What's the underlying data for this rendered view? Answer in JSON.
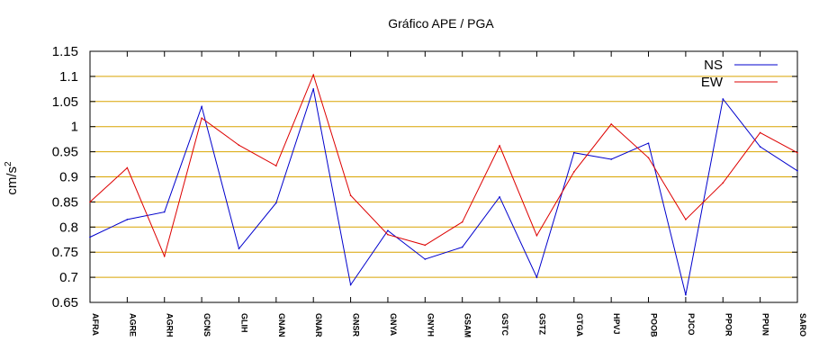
{
  "chart_data": {
    "type": "line",
    "title": "Gráfico  APE / PGA",
    "ylabel": "cm/s",
    "ylabel_sup": "2",
    "xlabel": "",
    "ylim": [
      0.65,
      1.15
    ],
    "yticks": [
      0.65,
      0.7,
      0.75,
      0.8,
      0.85,
      0.9,
      0.95,
      1,
      1.05,
      1.1,
      1.15
    ],
    "ytick_labels": [
      "0.65",
      "0.7",
      "0.75",
      "0.8",
      "0.85",
      "0.9",
      "0.95",
      "1",
      "1.05",
      "1.1",
      "1.15"
    ],
    "grid": true,
    "grid_color": "#d9a400",
    "legend_position": "top-right",
    "categories": [
      "AFRA",
      "AGRE",
      "AGRH",
      "GCNS",
      "GLIH",
      "GNAN",
      "GNAR",
      "GNSR",
      "GNYA",
      "GNYH",
      "GSAM",
      "GSTC",
      "GSTZ",
      "GTGA",
      "HPVJ",
      "POOB",
      "PJCO",
      "PPOR",
      "PPUN",
      "SARO"
    ],
    "series": [
      {
        "name": "NS",
        "color": "#0000cc",
        "values": [
          0.78,
          0.815,
          0.83,
          1.04,
          0.757,
          0.848,
          1.075,
          0.685,
          0.793,
          0.736,
          0.76,
          0.86,
          0.7,
          0.948,
          0.935,
          0.967,
          0.665,
          1.055,
          0.96,
          0.912
        ]
      },
      {
        "name": "EW",
        "color": "#dd0000",
        "values": [
          0.85,
          0.918,
          0.742,
          1.017,
          0.963,
          0.922,
          1.103,
          0.863,
          0.785,
          0.764,
          0.81,
          0.962,
          0.783,
          0.91,
          1.005,
          0.938,
          0.815,
          0.888,
          0.988,
          0.948
        ]
      }
    ]
  }
}
